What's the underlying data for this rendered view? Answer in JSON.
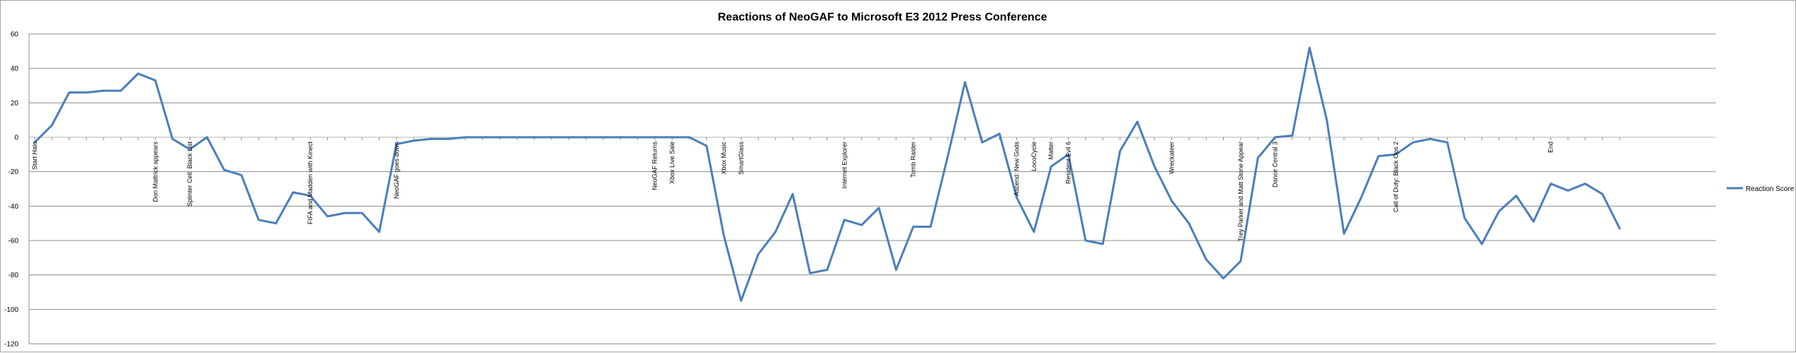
{
  "chart_data": {
    "type": "line",
    "title": "Reactions of NeoGAF to Microsoft E3 2012 Press Conference",
    "xlabel": "",
    "ylabel": "",
    "ylim": [
      -120,
      60
    ],
    "yticks": [
      60,
      40,
      20,
      0,
      -20,
      -40,
      -60,
      -80,
      -100,
      -120
    ],
    "grid": true,
    "legend_position": "right",
    "color": "#4a7ebb",
    "series": [
      {
        "name": "Reaction Score",
        "values": [
          -3,
          7,
          26,
          26,
          27,
          27,
          37,
          33,
          -1,
          -7,
          0,
          -19,
          -22,
          -48,
          -50,
          -32,
          -34,
          -46,
          -44,
          -44,
          -55,
          -4,
          -2,
          -1,
          -1,
          0,
          0,
          0,
          0,
          0,
          0,
          0,
          0,
          0,
          0,
          0,
          0,
          0,
          0,
          -5,
          -57,
          -95,
          -68,
          -55,
          -33,
          -79,
          -77,
          -48,
          -51,
          -41,
          -77,
          -52,
          -52,
          -11,
          32,
          -3,
          2,
          -35,
          -55,
          -17,
          -10,
          -60,
          -62,
          -8,
          9,
          -17,
          -37,
          -50,
          -71,
          -82,
          -72,
          -12,
          0,
          1,
          52,
          10,
          -56,
          -35,
          -11,
          -10,
          -3,
          -1,
          -3,
          -47,
          -62,
          -43,
          -34,
          -49,
          -27,
          -31,
          -27,
          -33,
          -53
        ]
      }
    ],
    "annotations": [
      {
        "index": 0,
        "text": "Start Halo"
      },
      {
        "index": 7,
        "text": "Don Mattrick appears"
      },
      {
        "index": 9,
        "text": "Splinter Cell: Black List"
      },
      {
        "index": 16,
        "text": "FIFA and Madden with Kinect"
      },
      {
        "index": 21,
        "text": "NeoGAF goes down"
      },
      {
        "index": 36,
        "text": "NeoGAF Returns"
      },
      {
        "index": 37,
        "text": "Xbox Live Sale"
      },
      {
        "index": 40,
        "text": "Xbox Music"
      },
      {
        "index": 41,
        "text": "SmartGlass"
      },
      {
        "index": 47,
        "text": "Internet Explorer"
      },
      {
        "index": 51,
        "text": "Tomb Raider"
      },
      {
        "index": 57,
        "text": "Ascend: New Gods"
      },
      {
        "index": 58,
        "text": "LocoCycle"
      },
      {
        "index": 59,
        "text": "Matter"
      },
      {
        "index": 60,
        "text": "Resident Evil 6"
      },
      {
        "index": 66,
        "text": "Wreckateer"
      },
      {
        "index": 70,
        "text": "Trey Parker and Matt Stone Appear"
      },
      {
        "index": 72,
        "text": "Dance Central 3"
      },
      {
        "index": 79,
        "text": "Call of Duty: Black Ops 2"
      },
      {
        "index": 88,
        "text": "End"
      }
    ]
  }
}
